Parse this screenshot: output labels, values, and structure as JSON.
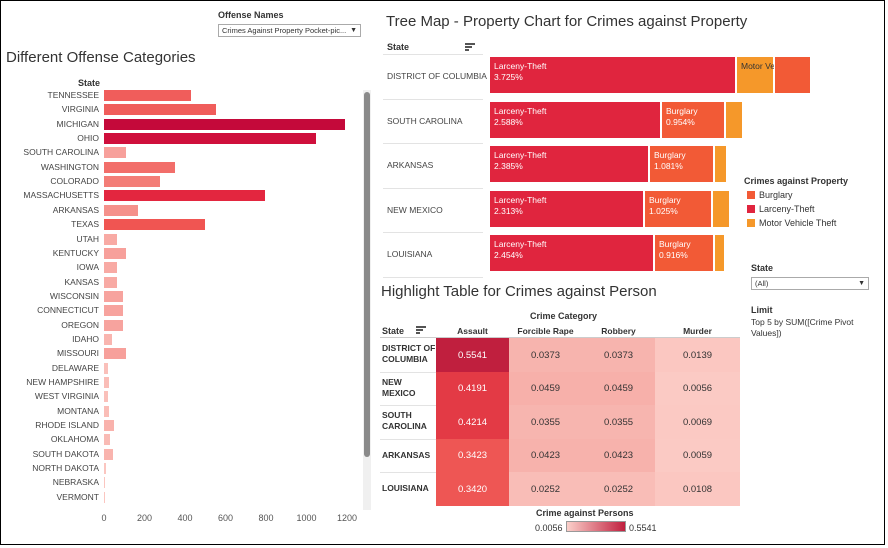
{
  "offense_filter": {
    "label": "Offense Names",
    "value": "Crimes Against Property Pocket-pic..."
  },
  "bar_chart": {
    "title": "Different Offense Categories",
    "axis_header": "State",
    "ticks": [
      "0",
      "200",
      "400",
      "600",
      "800",
      "1000",
      "1200"
    ],
    "items": [
      {
        "state": "TENNESSEE",
        "value": 430,
        "color": "#f05d5b"
      },
      {
        "state": "VIRGINIA",
        "value": 555,
        "color": "#f05d5b"
      },
      {
        "state": "MICHIGAN",
        "value": 1190,
        "color": "#c4093a"
      },
      {
        "state": "OHIO",
        "value": 1045,
        "color": "#cf0f3c"
      },
      {
        "state": "SOUTH CAROLINA",
        "value": 110,
        "color": "#f7a09b"
      },
      {
        "state": "WASHINGTON",
        "value": 350,
        "color": "#f26e6a"
      },
      {
        "state": "COLORADO",
        "value": 275,
        "color": "#f37d77"
      },
      {
        "state": "MASSACHUSETTS",
        "value": 795,
        "color": "#e3263f"
      },
      {
        "state": "ARKANSAS",
        "value": 170,
        "color": "#f5918b"
      },
      {
        "state": "TEXAS",
        "value": 500,
        "color": "#f05552"
      },
      {
        "state": "UTAH",
        "value": 65,
        "color": "#f8aaa4"
      },
      {
        "state": "KENTUCKY",
        "value": 110,
        "color": "#f7a09b"
      },
      {
        "state": "IOWA",
        "value": 65,
        "color": "#f8aaa4"
      },
      {
        "state": "KANSAS",
        "value": 65,
        "color": "#f8aaa4"
      },
      {
        "state": "WISCONSIN",
        "value": 95,
        "color": "#f7a39e"
      },
      {
        "state": "CONNECTICUT",
        "value": 95,
        "color": "#f7a39e"
      },
      {
        "state": "OREGON",
        "value": 95,
        "color": "#f7a39e"
      },
      {
        "state": "IDAHO",
        "value": 40,
        "color": "#f9b5af"
      },
      {
        "state": "MISSOURI",
        "value": 110,
        "color": "#f7a09b"
      },
      {
        "state": "DELAWARE",
        "value": 20,
        "color": "#fac0ba"
      },
      {
        "state": "NEW HAMPSHIRE",
        "value": 25,
        "color": "#fabdb7"
      },
      {
        "state": "WEST VIRGINIA",
        "value": 20,
        "color": "#fac0ba"
      },
      {
        "state": "MONTANA",
        "value": 25,
        "color": "#fabdb7"
      },
      {
        "state": "RHODE ISLAND",
        "value": 50,
        "color": "#f9b2ac"
      },
      {
        "state": "OKLAHOMA",
        "value": 30,
        "color": "#f9bbb5"
      },
      {
        "state": "SOUTH DAKOTA",
        "value": 45,
        "color": "#f9b4ae"
      },
      {
        "state": "NORTH DAKOTA",
        "value": 10,
        "color": "#fbc6c0"
      },
      {
        "state": "NEBRASKA",
        "value": 0,
        "color": "#fbc6c0"
      },
      {
        "state": "VERMONT",
        "value": 5,
        "color": "#fbc6c0"
      }
    ]
  },
  "treemap": {
    "title": "Tree Map - Property Chart for Crimes against Property",
    "header": "State",
    "rows": [
      {
        "state": "DISTRICT OF COLUMBIA",
        "blocks": [
          {
            "label": "Larceny-Theft",
            "value": "3.725%",
            "color": "#e0253e"
          },
          {
            "label": "Motor Vehicle",
            "value": "",
            "color": "#f5982a"
          },
          {
            "label": "",
            "value": "",
            "color": "#f25a36"
          }
        ]
      },
      {
        "state": "SOUTH CAROLINA",
        "blocks": [
          {
            "label": "Larceny-Theft",
            "value": "2.588%",
            "color": "#e0253e"
          },
          {
            "label": "Burglary",
            "value": "0.954%",
            "color": "#f25a36"
          },
          {
            "label": "",
            "value": "",
            "color": "#f5982a"
          }
        ]
      },
      {
        "state": "ARKANSAS",
        "blocks": [
          {
            "label": "Larceny-Theft",
            "value": "2.385%",
            "color": "#e0253e"
          },
          {
            "label": "Burglary",
            "value": "1.081%",
            "color": "#f25a36"
          },
          {
            "label": "",
            "value": "",
            "color": "#f5982a"
          }
        ]
      },
      {
        "state": "NEW MEXICO",
        "blocks": [
          {
            "label": "Larceny-Theft",
            "value": "2.313%",
            "color": "#e0253e"
          },
          {
            "label": "Burglary",
            "value": "1.025%",
            "color": "#f25a36"
          },
          {
            "label": "",
            "value": "",
            "color": "#f5982a"
          }
        ]
      },
      {
        "state": "LOUISIANA",
        "blocks": [
          {
            "label": "Larceny-Theft",
            "value": "2.454%",
            "color": "#e0253e"
          },
          {
            "label": "Burglary",
            "value": "0.916%",
            "color": "#f25a36"
          },
          {
            "label": "",
            "value": "",
            "color": "#f5982a"
          }
        ]
      }
    ],
    "legend": {
      "title": "Crimes against Property",
      "items": [
        {
          "label": "Burglary",
          "color": "#f25a36"
        },
        {
          "label": "Larceny-Theft",
          "color": "#e0253e"
        },
        {
          "label": "Motor Vehicle Theft",
          "color": "#f5982a"
        }
      ]
    }
  },
  "state_filter": {
    "label": "State",
    "value": "(All)"
  },
  "limit": {
    "label": "Limit",
    "text": "Top 5 by SUM([Crime Pivot Values])"
  },
  "highlight_table": {
    "title": "Highlight Table for Crimes against Person",
    "group_header": "Crime Category",
    "row_header": "State",
    "columns": [
      "Assault",
      "Forcible Rape",
      "Robbery",
      "Murder"
    ],
    "rows": [
      {
        "state_lines": [
          "DISTRICT OF",
          "COLUMBIA"
        ],
        "cells": [
          {
            "v": "0.5541",
            "bg": "#c01f3e",
            "fg": "#fff"
          },
          {
            "v": "0.0373",
            "bg": "#f7b4ae",
            "fg": "#333"
          },
          {
            "v": "0.0373",
            "bg": "#f7b4ae",
            "fg": "#333"
          },
          {
            "v": "0.0139",
            "bg": "#fbc7c1",
            "fg": "#333"
          }
        ]
      },
      {
        "state_lines": [
          "NEW",
          "MEXICO"
        ],
        "cells": [
          {
            "v": "0.4191",
            "bg": "#e33a45",
            "fg": "#fff"
          },
          {
            "v": "0.0459",
            "bg": "#f7b0aa",
            "fg": "#333"
          },
          {
            "v": "0.0459",
            "bg": "#f7b0aa",
            "fg": "#333"
          },
          {
            "v": "0.0056",
            "bg": "#fbcac4",
            "fg": "#333"
          }
        ]
      },
      {
        "state_lines": [
          "SOUTH",
          "CAROLINA"
        ],
        "cells": [
          {
            "v": "0.4214",
            "bg": "#e33a45",
            "fg": "#fff"
          },
          {
            "v": "0.0355",
            "bg": "#f7b5af",
            "fg": "#333"
          },
          {
            "v": "0.0355",
            "bg": "#f7b5af",
            "fg": "#333"
          },
          {
            "v": "0.0069",
            "bg": "#fbc9c3",
            "fg": "#333"
          }
        ]
      },
      {
        "state_lines": [
          "ARKANSAS"
        ],
        "cells": [
          {
            "v": "0.3423",
            "bg": "#ee5654",
            "fg": "#fff"
          },
          {
            "v": "0.0423",
            "bg": "#f7b2ac",
            "fg": "#333"
          },
          {
            "v": "0.0423",
            "bg": "#f7b2ac",
            "fg": "#333"
          },
          {
            "v": "0.0059",
            "bg": "#fbcac4",
            "fg": "#333"
          }
        ]
      },
      {
        "state_lines": [
          "LOUISIANA"
        ],
        "cells": [
          {
            "v": "0.3420",
            "bg": "#ee5654",
            "fg": "#fff"
          },
          {
            "v": "0.0252",
            "bg": "#f9bdb7",
            "fg": "#333"
          },
          {
            "v": "0.0252",
            "bg": "#f9bdb7",
            "fg": "#333"
          },
          {
            "v": "0.0108",
            "bg": "#fbc7c1",
            "fg": "#333"
          }
        ]
      }
    ],
    "legend": {
      "title": "Crime against Persons",
      "min": "0.0056",
      "max": "0.5541",
      "color_low": "#fbd0ca",
      "color_high": "#c01f3e"
    }
  }
}
